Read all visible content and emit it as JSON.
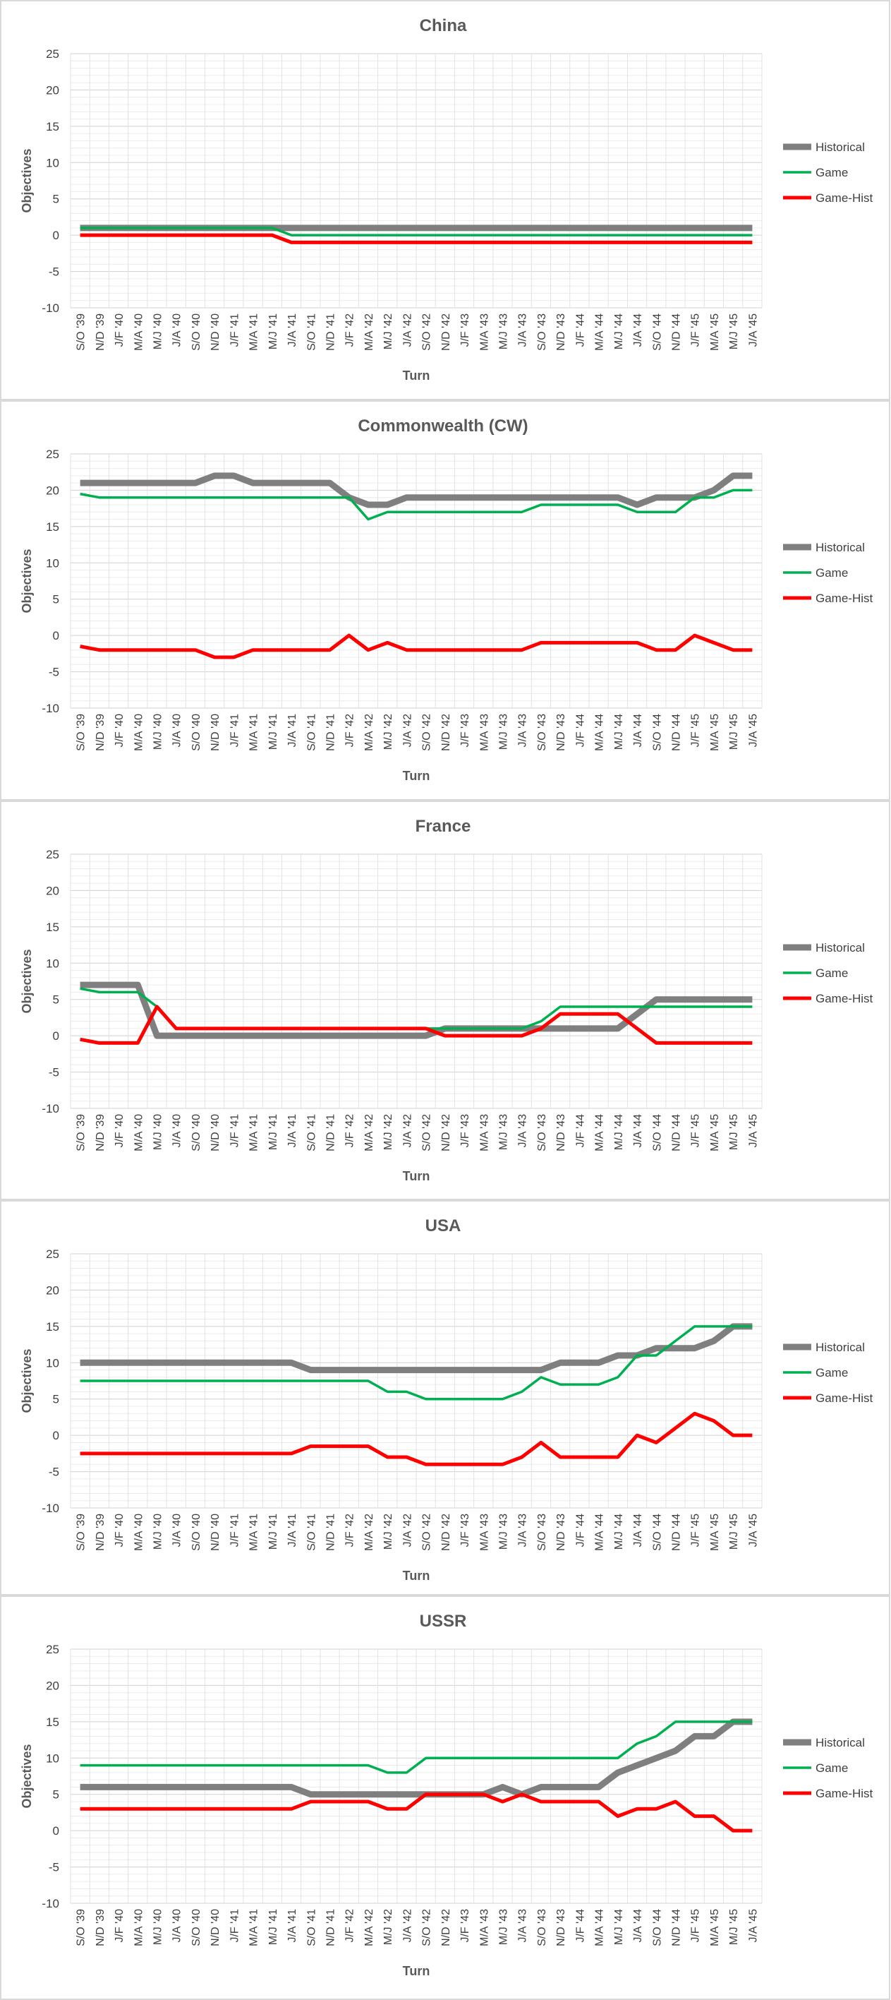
{
  "series_names": [
    "Historical",
    "Game",
    "Game-Hist"
  ],
  "colors": {
    "Historical": "#7f7f7f",
    "Game": "#00b050",
    "Game-Hist": "#ff0000",
    "grid": "#d9d9d9",
    "border": "#d9d9d9",
    "text": "#404040"
  },
  "chart_data": [
    {
      "type": "line",
      "title": "China",
      "xlabel": "Turn",
      "ylabel": "Objectives",
      "ylim": [
        -10,
        25
      ],
      "yticks": [
        -10,
        -5,
        0,
        5,
        10,
        15,
        20,
        25
      ],
      "grid": true,
      "legend": "right",
      "categories": [
        "S/O '39",
        "N/D '39",
        "J/F '40",
        "M/A '40",
        "M/J '40",
        "J/A '40",
        "S/O '40",
        "N/D '40",
        "J/F '41",
        "M/A '41",
        "M/J '41",
        "J/A '41",
        "S/O '41",
        "N/D '41",
        "J/F '42",
        "M/A '42",
        "M/J '42",
        "J/A '42",
        "S/O '42",
        "N/D '42",
        "J/F '43",
        "M/A '43",
        "M/J '43",
        "J/A '43",
        "S/O '43",
        "N/D '43",
        "J/F '44",
        "M/A '44",
        "M/J '44",
        "J/A '44",
        "S/O '44",
        "N/D '44",
        "J/F '45",
        "M/A '45",
        "M/J '45",
        "J/A '45"
      ],
      "series": [
        {
          "name": "Historical",
          "values": [
            1,
            1,
            1,
            1,
            1,
            1,
            1,
            1,
            1,
            1,
            1,
            1,
            1,
            1,
            1,
            1,
            1,
            1,
            1,
            1,
            1,
            1,
            1,
            1,
            1,
            1,
            1,
            1,
            1,
            1,
            1,
            1,
            1,
            1,
            1,
            1
          ]
        },
        {
          "name": "Game",
          "values": [
            1,
            1,
            1,
            1,
            1,
            1,
            1,
            1,
            1,
            1,
            1,
            0,
            0,
            0,
            0,
            0,
            0,
            0,
            0,
            0,
            0,
            0,
            0,
            0,
            0,
            0,
            0,
            0,
            0,
            0,
            0,
            0,
            0,
            0,
            0,
            0
          ]
        },
        {
          "name": "Game-Hist",
          "values": [
            0,
            0,
            0,
            0,
            0,
            0,
            0,
            0,
            0,
            0,
            0,
            -1,
            -1,
            -1,
            -1,
            -1,
            -1,
            -1,
            -1,
            -1,
            -1,
            -1,
            -1,
            -1,
            -1,
            -1,
            -1,
            -1,
            -1,
            -1,
            -1,
            -1,
            -1,
            -1,
            -1,
            -1
          ]
        }
      ]
    },
    {
      "type": "line",
      "title": "Commonwealth (CW)",
      "xlabel": "Turn",
      "ylabel": "Objectives",
      "ylim": [
        -10,
        25
      ],
      "yticks": [
        -10,
        -5,
        0,
        5,
        10,
        15,
        20,
        25
      ],
      "grid": true,
      "legend": "right",
      "categories": [
        "S/O '39",
        "N/D '39",
        "J/F '40",
        "M/A '40",
        "M/J '40",
        "J/A '40",
        "S/O '40",
        "N/D '40",
        "J/F '41",
        "M/A '41",
        "M/J '41",
        "J/A '41",
        "S/O '41",
        "N/D '41",
        "J/F '42",
        "M/A '42",
        "M/J '42",
        "J/A '42",
        "S/O '42",
        "N/D '42",
        "J/F '43",
        "M/A '43",
        "M/J '43",
        "J/A '43",
        "S/O '43",
        "N/D '43",
        "J/F '44",
        "M/A '44",
        "M/J '44",
        "J/A '44",
        "S/O '44",
        "N/D '44",
        "J/F '45",
        "M/A '45",
        "M/J '45",
        "J/A '45"
      ],
      "series": [
        {
          "name": "Historical",
          "values": [
            21,
            21,
            21,
            21,
            21,
            21,
            21,
            22,
            22,
            21,
            21,
            21,
            21,
            21,
            19,
            18,
            18,
            19,
            19,
            19,
            19,
            19,
            19,
            19,
            19,
            19,
            19,
            19,
            19,
            18,
            19,
            19,
            19,
            20,
            22,
            22
          ]
        },
        {
          "name": "Game",
          "values": [
            19.5,
            19,
            19,
            19,
            19,
            19,
            19,
            19,
            19,
            19,
            19,
            19,
            19,
            19,
            19,
            16,
            17,
            17,
            17,
            17,
            17,
            17,
            17,
            17,
            18,
            18,
            18,
            18,
            18,
            17,
            17,
            17,
            19,
            19,
            20,
            20
          ]
        },
        {
          "name": "Game-Hist",
          "values": [
            -1.5,
            -2,
            -2,
            -2,
            -2,
            -2,
            -2,
            -3,
            -3,
            -2,
            -2,
            -2,
            -2,
            -2,
            0,
            -2,
            -1,
            -2,
            -2,
            -2,
            -2,
            -2,
            -2,
            -2,
            -1,
            -1,
            -1,
            -1,
            -1,
            -1,
            -2,
            -2,
            0,
            -1,
            -2,
            -2
          ]
        }
      ]
    },
    {
      "type": "line",
      "title": "France",
      "xlabel": "Turn",
      "ylabel": "Objectives",
      "ylim": [
        -10,
        25
      ],
      "yticks": [
        -10,
        -5,
        0,
        5,
        10,
        15,
        20,
        25
      ],
      "grid": true,
      "legend": "right",
      "categories": [
        "S/O '39",
        "N/D '39",
        "J/F '40",
        "M/A '40",
        "M/J '40",
        "J/A '40",
        "S/O '40",
        "N/D '40",
        "J/F '41",
        "M/A '41",
        "M/J '41",
        "J/A '41",
        "S/O '41",
        "N/D '41",
        "J/F '42",
        "M/A '42",
        "M/J '42",
        "J/A '42",
        "S/O '42",
        "N/D '42",
        "J/F '43",
        "M/A '43",
        "M/J '43",
        "J/A '43",
        "S/O '43",
        "N/D '43",
        "J/F '44",
        "M/A '44",
        "M/J '44",
        "J/A '44",
        "S/O '44",
        "N/D '44",
        "J/F '45",
        "M/A '45",
        "M/J '45",
        "J/A '45"
      ],
      "series": [
        {
          "name": "Historical",
          "values": [
            7,
            7,
            7,
            7,
            0,
            0,
            0,
            0,
            0,
            0,
            0,
            0,
            0,
            0,
            0,
            0,
            0,
            0,
            0,
            1,
            1,
            1,
            1,
            1,
            1,
            1,
            1,
            1,
            1,
            3,
            5,
            5,
            5,
            5,
            5,
            5
          ]
        },
        {
          "name": "Game",
          "values": [
            6.5,
            6,
            6,
            6,
            4,
            1,
            1,
            1,
            1,
            1,
            1,
            1,
            1,
            1,
            1,
            1,
            1,
            1,
            1,
            1,
            1,
            1,
            1,
            1,
            2,
            4,
            4,
            4,
            4,
            4,
            4,
            4,
            4,
            4,
            4,
            4
          ]
        },
        {
          "name": "Game-Hist",
          "values": [
            -0.5,
            -1,
            -1,
            -1,
            4,
            1,
            1,
            1,
            1,
            1,
            1,
            1,
            1,
            1,
            1,
            1,
            1,
            1,
            1,
            0,
            0,
            0,
            0,
            0,
            1,
            3,
            3,
            3,
            3,
            1,
            -1,
            -1,
            -1,
            -1,
            -1,
            -1
          ]
        }
      ]
    },
    {
      "type": "line",
      "title": "USA",
      "xlabel": "Turn",
      "ylabel": "Objectives",
      "ylim": [
        -10,
        25
      ],
      "yticks": [
        -10,
        -5,
        0,
        5,
        10,
        15,
        20,
        25
      ],
      "grid": true,
      "legend": "right",
      "categories": [
        "S/O '39",
        "N/D '39",
        "J/F '40",
        "M/A '40",
        "M/J '40",
        "J/A '40",
        "S/O '40",
        "N/D '40",
        "J/F '41",
        "M/A '41",
        "M/J '41",
        "J/A '41",
        "S/O '41",
        "N/D '41",
        "J/F '42",
        "M/A '42",
        "M/J '42",
        "J/A '42",
        "S/O '42",
        "N/D '42",
        "J/F '43",
        "M/A '43",
        "M/J '43",
        "J/A '43",
        "S/O '43",
        "N/D '43",
        "J/F '44",
        "M/A '44",
        "M/J '44",
        "J/A '44",
        "S/O '44",
        "N/D '44",
        "J/F '45",
        "M/A '45",
        "M/J '45",
        "J/A '45"
      ],
      "series": [
        {
          "name": "Historical",
          "values": [
            10,
            10,
            10,
            10,
            10,
            10,
            10,
            10,
            10,
            10,
            10,
            10,
            9,
            9,
            9,
            9,
            9,
            9,
            9,
            9,
            9,
            9,
            9,
            9,
            9,
            10,
            10,
            10,
            11,
            11,
            12,
            12,
            12,
            13,
            15,
            15
          ]
        },
        {
          "name": "Game",
          "values": [
            7.5,
            7.5,
            7.5,
            7.5,
            7.5,
            7.5,
            7.5,
            7.5,
            7.5,
            7.5,
            7.5,
            7.5,
            7.5,
            7.5,
            7.5,
            7.5,
            6,
            6,
            5,
            5,
            5,
            5,
            5,
            6,
            8,
            7,
            7,
            7,
            8,
            11,
            11,
            13,
            15,
            15,
            15,
            15
          ]
        },
        {
          "name": "Game-Hist",
          "values": [
            -2.5,
            -2.5,
            -2.5,
            -2.5,
            -2.5,
            -2.5,
            -2.5,
            -2.5,
            -2.5,
            -2.5,
            -2.5,
            -2.5,
            -1.5,
            -1.5,
            -1.5,
            -1.5,
            -3,
            -3,
            -4,
            -4,
            -4,
            -4,
            -4,
            -3,
            -1,
            -3,
            -3,
            -3,
            -3,
            0,
            -1,
            1,
            3,
            2,
            0,
            0
          ]
        }
      ]
    },
    {
      "type": "line",
      "title": "USSR",
      "xlabel": "Turn",
      "ylabel": "Objectives",
      "ylim": [
        -10,
        25
      ],
      "yticks": [
        -10,
        -5,
        0,
        5,
        10,
        15,
        20,
        25
      ],
      "grid": true,
      "legend": "right",
      "categories": [
        "S/O '39",
        "N/D '39",
        "J/F '40",
        "M/A '40",
        "M/J '40",
        "J/A '40",
        "S/O '40",
        "N/D '40",
        "J/F '41",
        "M/A '41",
        "M/J '41",
        "J/A '41",
        "S/O '41",
        "N/D '41",
        "J/F '42",
        "M/A '42",
        "M/J '42",
        "J/A '42",
        "S/O '42",
        "N/D '42",
        "J/F '43",
        "M/A '43",
        "M/J '43",
        "J/A '43",
        "S/O '43",
        "N/D '43",
        "J/F '44",
        "M/A '44",
        "M/J '44",
        "J/A '44",
        "S/O '44",
        "N/D '44",
        "J/F '45",
        "M/A '45",
        "M/J '45",
        "J/A '45"
      ],
      "series": [
        {
          "name": "Historical",
          "values": [
            6,
            6,
            6,
            6,
            6,
            6,
            6,
            6,
            6,
            6,
            6,
            6,
            5,
            5,
            5,
            5,
            5,
            5,
            5,
            5,
            5,
            5,
            6,
            5,
            6,
            6,
            6,
            6,
            8,
            9,
            10,
            11,
            13,
            13,
            15,
            15
          ]
        },
        {
          "name": "Game",
          "values": [
            9,
            9,
            9,
            9,
            9,
            9,
            9,
            9,
            9,
            9,
            9,
            9,
            9,
            9,
            9,
            9,
            8,
            8,
            10,
            10,
            10,
            10,
            10,
            10,
            10,
            10,
            10,
            10,
            10,
            12,
            13,
            15,
            15,
            15,
            15,
            15
          ]
        },
        {
          "name": "Game-Hist",
          "values": [
            3,
            3,
            3,
            3,
            3,
            3,
            3,
            3,
            3,
            3,
            3,
            3,
            4,
            4,
            4,
            4,
            3,
            3,
            5,
            5,
            5,
            5,
            4,
            5,
            4,
            4,
            4,
            4,
            2,
            3,
            3,
            4,
            2,
            2,
            0,
            0
          ]
        }
      ]
    }
  ]
}
